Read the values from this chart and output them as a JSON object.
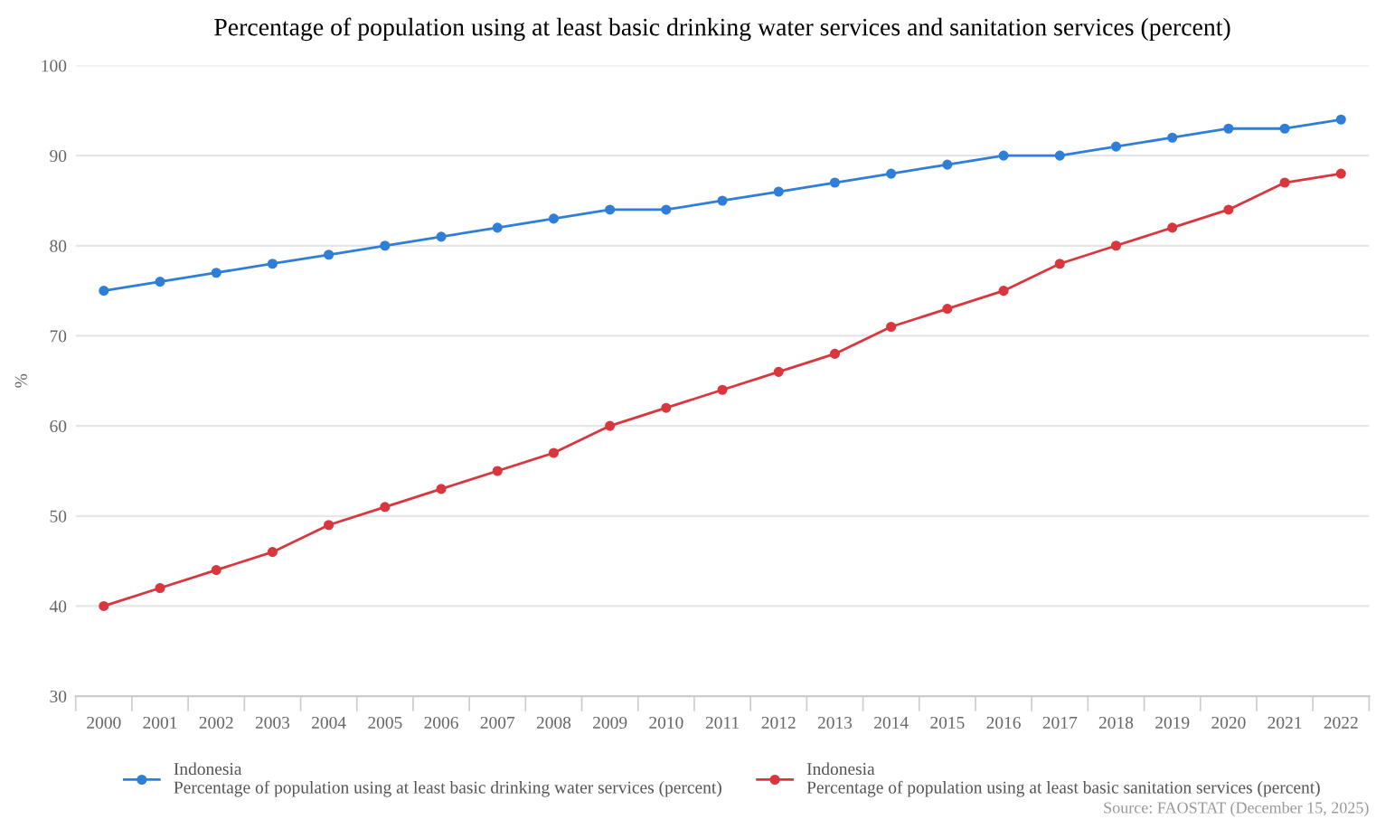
{
  "chart_data": {
    "type": "line",
    "title": "Percentage of population using at least basic drinking water services and sanitation services (percent)",
    "ylabel": "%",
    "categories": [
      "2000",
      "2001",
      "2002",
      "2003",
      "2004",
      "2005",
      "2006",
      "2007",
      "2008",
      "2009",
      "2010",
      "2011",
      "2012",
      "2013",
      "2014",
      "2015",
      "2016",
      "2017",
      "2018",
      "2019",
      "2020",
      "2021",
      "2022"
    ],
    "series": [
      {
        "name": "Indonesia\nPercentage of population using at least basic drinking water services (percent)",
        "color": "#2f7ed8",
        "values": [
          75,
          76,
          77,
          78,
          79,
          80,
          81,
          82,
          83,
          84,
          84,
          85,
          86,
          87,
          88,
          89,
          90,
          90,
          91,
          92,
          93,
          93,
          94
        ]
      },
      {
        "name": "Indonesia\nPercentage of population using at least basic sanitation services (percent)",
        "color": "#d9363e",
        "values": [
          40,
          42,
          44,
          46,
          49,
          51,
          53,
          55,
          57,
          60,
          62,
          64,
          66,
          68,
          71,
          73,
          75,
          78,
          80,
          82,
          84,
          87,
          88
        ]
      }
    ],
    "ylim": [
      30,
      100
    ],
    "yticks": [
      30,
      40,
      50,
      60,
      70,
      80,
      90,
      100
    ],
    "grid": "y",
    "legend": "bottom",
    "marker": "circle",
    "line_style": "solid",
    "annotations": [
      "Source: FAOSTAT (December 15, 2025)"
    ]
  }
}
